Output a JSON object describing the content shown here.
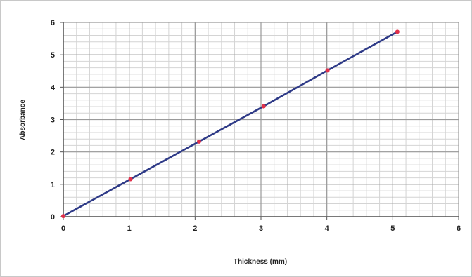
{
  "chart_data": {
    "type": "scatter",
    "xlabel": "Thickness (mm)",
    "ylabel": "Absorbance",
    "xlim": [
      0,
      6
    ],
    "ylim": [
      0,
      6
    ],
    "x_ticks": [
      0,
      1,
      2,
      3,
      4,
      5,
      6
    ],
    "y_ticks": [
      0,
      1,
      2,
      3,
      4,
      5,
      6
    ],
    "grid": true,
    "grid_minor": true,
    "legend": "none",
    "series": [
      {
        "x": [
          0,
          1.02,
          2.06,
          3.04,
          4.01,
          5.07
        ],
        "y": [
          0.02,
          1.16,
          2.32,
          3.41,
          4.52,
          5.71
        ],
        "line_color": "#2e3a87",
        "marker_color": "#e0314b",
        "trendline": true
      }
    ]
  }
}
